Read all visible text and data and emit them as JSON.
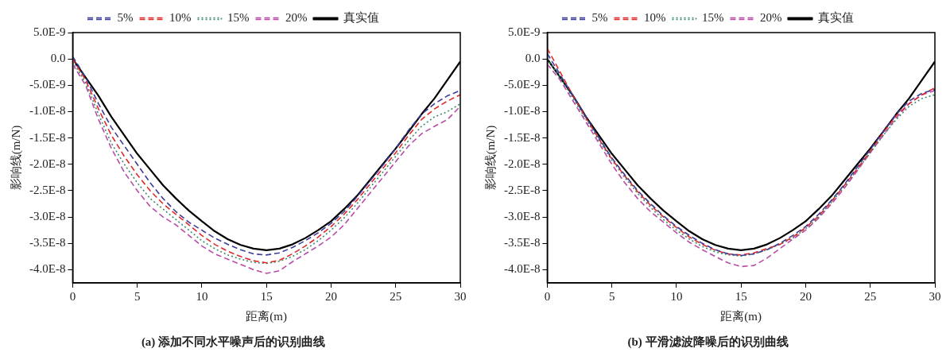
{
  "chart_data": [
    {
      "type": "line",
      "title": "(a) 添加不同水平噪声后的识别曲线",
      "xlabel": "距离(m)",
      "ylabel": "影响线(m/N)",
      "x": [
        0,
        1,
        2,
        3,
        4,
        5,
        6,
        7,
        8,
        9,
        10,
        11,
        12,
        13,
        14,
        15,
        16,
        17,
        18,
        19,
        20,
        21,
        22,
        23,
        24,
        25,
        26,
        27,
        28,
        29,
        30
      ],
      "series": [
        {
          "name": "5%",
          "color": "#3c3c9c",
          "line_style": "dashed",
          "values": [
            5e-10,
            -3.5e-09,
            -8.5e-09,
            -1.3e-08,
            -1.65e-08,
            -2e-08,
            -2.35e-08,
            -2.65e-08,
            -2.9e-08,
            -3.1e-08,
            -3.25e-08,
            -3.4e-08,
            -3.52e-08,
            -3.62e-08,
            -3.7e-08,
            -3.72e-08,
            -3.68e-08,
            -3.58e-08,
            -3.45e-08,
            -3.3e-08,
            -3.12e-08,
            -2.9e-08,
            -2.62e-08,
            -2.32e-08,
            -2.02e-08,
            -1.7e-08,
            -1.35e-08,
            -1.05e-08,
            -8.5e-09,
            -7e-09,
            -6e-09
          ]
        },
        {
          "name": "10%",
          "color": "#e02a2a",
          "line_style": "dashed",
          "values": [
            0,
            -4e-09,
            -9.5e-09,
            -1.45e-08,
            -1.85e-08,
            -2.2e-08,
            -2.5e-08,
            -2.75e-08,
            -2.95e-08,
            -3.15e-08,
            -3.35e-08,
            -3.52e-08,
            -3.65e-08,
            -3.75e-08,
            -3.83e-08,
            -3.87e-08,
            -3.82e-08,
            -3.7e-08,
            -3.55e-08,
            -3.38e-08,
            -3.18e-08,
            -2.95e-08,
            -2.68e-08,
            -2.38e-08,
            -2.08e-08,
            -1.78e-08,
            -1.45e-08,
            -1.15e-08,
            -9.5e-09,
            -8e-09,
            -6.8e-09
          ]
        },
        {
          "name": "15%",
          "color": "#3a8a6a",
          "line_style": "dotted",
          "values": [
            -5e-10,
            -4.5e-09,
            -1.05e-08,
            -1.6e-08,
            -2e-08,
            -2.35e-08,
            -2.65e-08,
            -2.85e-08,
            -3.05e-08,
            -3.25e-08,
            -3.45e-08,
            -3.6e-08,
            -3.72e-08,
            -3.8e-08,
            -3.86e-08,
            -3.88e-08,
            -3.84e-08,
            -3.75e-08,
            -3.62e-08,
            -3.45e-08,
            -3.25e-08,
            -3.02e-08,
            -2.75e-08,
            -2.45e-08,
            -2.15e-08,
            -1.85e-08,
            -1.55e-08,
            -1.28e-08,
            -1.1e-08,
            -1e-08,
            -8.5e-09
          ]
        },
        {
          "name": "20%",
          "color": "#b84aa8",
          "line_style": "dashed",
          "values": [
            -1e-09,
            -5e-09,
            -1.15e-08,
            -1.7e-08,
            -2.15e-08,
            -2.5e-08,
            -2.8e-08,
            -3e-08,
            -3.15e-08,
            -3.35e-08,
            -3.55e-08,
            -3.7e-08,
            -3.8e-08,
            -3.9e-08,
            -4e-08,
            -4.07e-08,
            -4.02e-08,
            -3.85e-08,
            -3.7e-08,
            -3.55e-08,
            -3.38e-08,
            -3.15e-08,
            -2.85e-08,
            -2.55e-08,
            -2.25e-08,
            -1.95e-08,
            -1.65e-08,
            -1.42e-08,
            -1.28e-08,
            -1.15e-08,
            -9e-09
          ]
        },
        {
          "name": "真实值",
          "color": "#000000",
          "line_style": "solid",
          "values": [
            0,
            -3.5e-09,
            -7e-09,
            -1.1e-08,
            -1.45e-08,
            -1.8e-08,
            -2.1e-08,
            -2.4e-08,
            -2.65e-08,
            -2.88e-08,
            -3.08e-08,
            -3.27e-08,
            -3.42e-08,
            -3.53e-08,
            -3.6e-08,
            -3.63e-08,
            -3.6e-08,
            -3.52e-08,
            -3.4e-08,
            -3.25e-08,
            -3.08e-08,
            -2.85e-08,
            -2.6e-08,
            -2.3e-08,
            -2e-08,
            -1.7e-08,
            -1.38e-08,
            -1.05e-08,
            -7.5e-09,
            -4e-09,
            -5e-10
          ]
        }
      ],
      "xlim": [
        0,
        30
      ],
      "xticks": [
        0,
        5,
        10,
        15,
        20,
        25,
        30
      ],
      "ylim": [
        -4.25e-08,
        5e-09
      ],
      "yticks": [
        {
          "value": 5e-09,
          "label": "5.0E-9"
        },
        {
          "value": 0,
          "label": "0.0"
        },
        {
          "value": -5e-09,
          "label": "-5.0E-9"
        },
        {
          "value": -1e-08,
          "label": "-1.0E-8"
        },
        {
          "value": -1.5e-08,
          "label": "-1.5E-8"
        },
        {
          "value": -2e-08,
          "label": "-2.0E-8"
        },
        {
          "value": -2.5e-08,
          "label": "-2.5E-8"
        },
        {
          "value": -3e-08,
          "label": "-3.0E-8"
        },
        {
          "value": -3.5e-08,
          "label": "-3.5E-8"
        },
        {
          "value": -4e-08,
          "label": "-4.0E-8"
        }
      ],
      "legend": "top"
    },
    {
      "type": "line",
      "title": "(b) 平滑滤波降噪后的识别曲线",
      "xlabel": "距离(m)",
      "ylabel": "影响线(m/N)",
      "x": [
        0,
        1,
        2,
        3,
        4,
        5,
        6,
        7,
        8,
        9,
        10,
        11,
        12,
        13,
        14,
        15,
        16,
        17,
        18,
        19,
        20,
        21,
        22,
        23,
        24,
        25,
        26,
        27,
        28,
        29,
        30
      ],
      "series": [
        {
          "name": "5%",
          "color": "#3c3c9c",
          "line_style": "dashed",
          "values": [
            1e-09,
            -3e-09,
            -7e-09,
            -1.1e-08,
            -1.5e-08,
            -1.88e-08,
            -2.2e-08,
            -2.5e-08,
            -2.75e-08,
            -2.98e-08,
            -3.18e-08,
            -3.35e-08,
            -3.5e-08,
            -3.62e-08,
            -3.7e-08,
            -3.73e-08,
            -3.7e-08,
            -3.62e-08,
            -3.5e-08,
            -3.35e-08,
            -3.18e-08,
            -2.95e-08,
            -2.68e-08,
            -2.38e-08,
            -2.05e-08,
            -1.72e-08,
            -1.38e-08,
            -1.05e-08,
            -8e-09,
            -6.5e-09,
            -5.8e-09
          ]
        },
        {
          "name": "10%",
          "color": "#e02a2a",
          "line_style": "dashed",
          "values": [
            2e-09,
            -2.5e-09,
            -7e-09,
            -1.12e-08,
            -1.52e-08,
            -1.9e-08,
            -2.22e-08,
            -2.52e-08,
            -2.78e-08,
            -3e-08,
            -3.2e-08,
            -3.38e-08,
            -3.52e-08,
            -3.63e-08,
            -3.7e-08,
            -3.72e-08,
            -3.68e-08,
            -3.6e-08,
            -3.52e-08,
            -3.38e-08,
            -3.2e-08,
            -2.98e-08,
            -2.7e-08,
            -2.4e-08,
            -2.08e-08,
            -1.75e-08,
            -1.4e-08,
            -1.08e-08,
            -8.5e-09,
            -6.8e-09,
            -5.5e-09
          ]
        },
        {
          "name": "15%",
          "color": "#3a8a6a",
          "line_style": "dotted",
          "values": [
            0,
            -3.5e-09,
            -7.5e-09,
            -1.15e-08,
            -1.55e-08,
            -1.92e-08,
            -2.25e-08,
            -2.55e-08,
            -2.82e-08,
            -3.05e-08,
            -3.25e-08,
            -3.42e-08,
            -3.56e-08,
            -3.66e-08,
            -3.72e-08,
            -3.74e-08,
            -3.7e-08,
            -3.62e-08,
            -3.52e-08,
            -3.4e-08,
            -3.22e-08,
            -3e-08,
            -2.72e-08,
            -2.42e-08,
            -2.1e-08,
            -1.78e-08,
            -1.45e-08,
            -1.15e-08,
            -9e-09,
            -7.5e-09,
            -6.8e-09
          ]
        },
        {
          "name": "20%",
          "color": "#b84aa8",
          "line_style": "dashed",
          "values": [
            -1e-09,
            -4e-09,
            -8e-09,
            -1.2e-08,
            -1.6e-08,
            -2e-08,
            -2.35e-08,
            -2.65e-08,
            -2.9e-08,
            -3.1e-08,
            -3.3e-08,
            -3.48e-08,
            -3.62e-08,
            -3.75e-08,
            -3.87e-08,
            -3.94e-08,
            -3.92e-08,
            -3.78e-08,
            -3.6e-08,
            -3.42e-08,
            -3.25e-08,
            -3.02e-08,
            -2.75e-08,
            -2.45e-08,
            -2.12e-08,
            -1.78e-08,
            -1.45e-08,
            -1.12e-08,
            -8.5e-09,
            -6.8e-09,
            -6e-09
          ]
        },
        {
          "name": "真实值",
          "color": "#000000",
          "line_style": "solid",
          "values": [
            0,
            -3.5e-09,
            -7e-09,
            -1.1e-08,
            -1.45e-08,
            -1.8e-08,
            -2.1e-08,
            -2.4e-08,
            -2.65e-08,
            -2.88e-08,
            -3.08e-08,
            -3.27e-08,
            -3.42e-08,
            -3.53e-08,
            -3.6e-08,
            -3.63e-08,
            -3.6e-08,
            -3.52e-08,
            -3.4e-08,
            -3.25e-08,
            -3.08e-08,
            -2.85e-08,
            -2.6e-08,
            -2.3e-08,
            -2e-08,
            -1.7e-08,
            -1.38e-08,
            -1.05e-08,
            -7.5e-09,
            -4e-09,
            -5e-10
          ]
        }
      ],
      "xlim": [
        0,
        30
      ],
      "xticks": [
        0,
        5,
        10,
        15,
        20,
        25,
        30
      ],
      "ylim": [
        -4.25e-08,
        5e-09
      ],
      "yticks": [
        {
          "value": 5e-09,
          "label": "5.0E-9"
        },
        {
          "value": 0,
          "label": "0.0"
        },
        {
          "value": -5e-09,
          "label": "-5.0E-9"
        },
        {
          "value": -1e-08,
          "label": "-1.0E-8"
        },
        {
          "value": -1.5e-08,
          "label": "-1.5E-8"
        },
        {
          "value": -2e-08,
          "label": "-2.0E-8"
        },
        {
          "value": -2.5e-08,
          "label": "-2.5E-8"
        },
        {
          "value": -3e-08,
          "label": "-3.0E-8"
        },
        {
          "value": -3.5e-08,
          "label": "-3.5E-8"
        },
        {
          "value": -4e-08,
          "label": "-4.0E-8"
        }
      ],
      "legend": "top"
    }
  ]
}
